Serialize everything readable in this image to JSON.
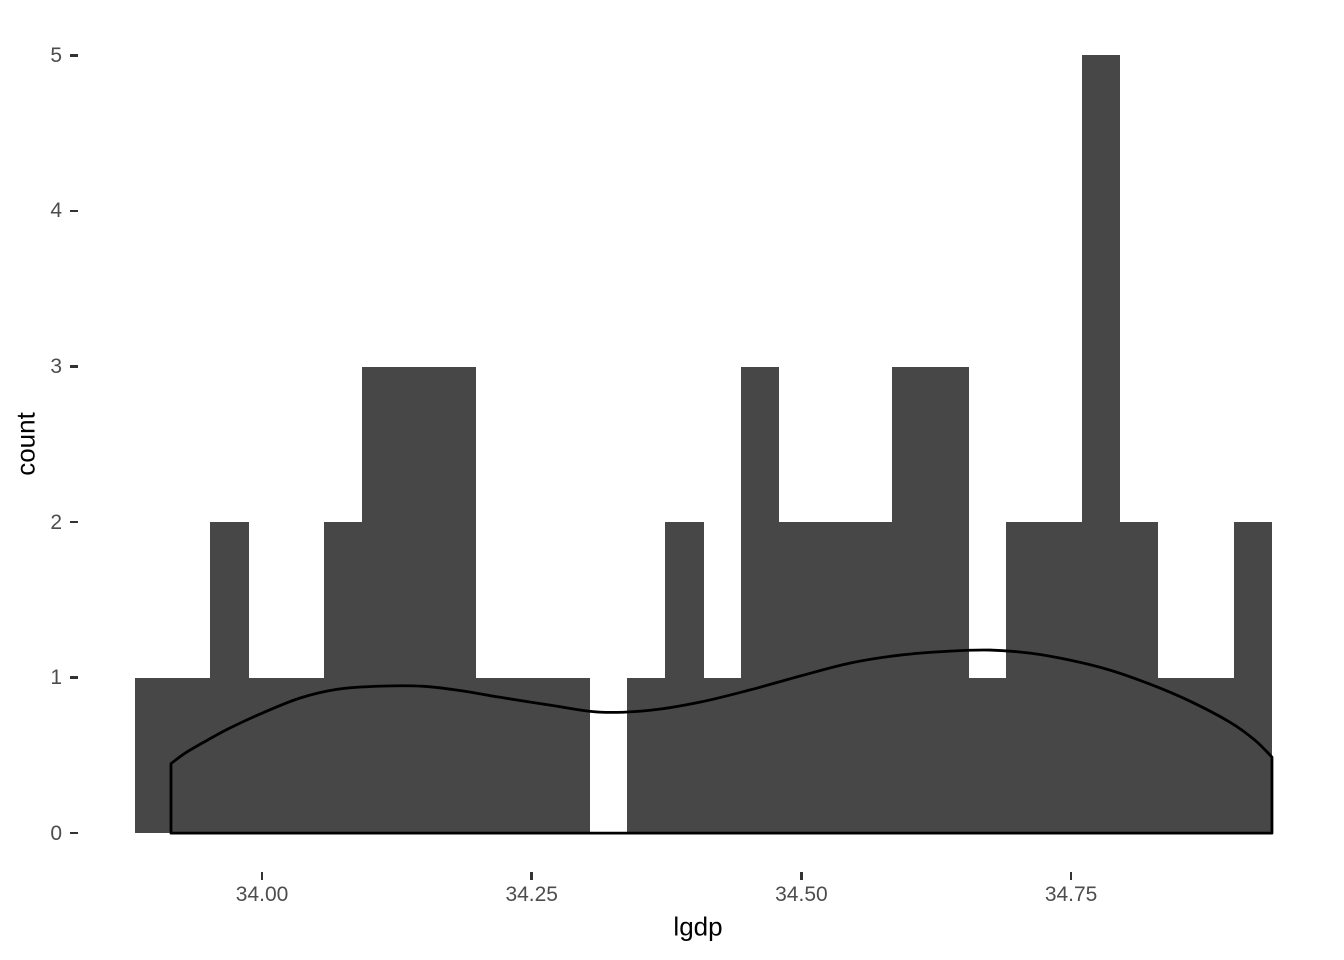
{
  "chart_data": {
    "type": "bar",
    "subtype": "histogram_with_density_overlay",
    "title": "",
    "xlabel": "lgdp",
    "ylabel": "count",
    "x_range": [
      33.8294,
      34.99
    ],
    "y_range": [
      -0.25,
      5.26
    ],
    "x_ticks": [
      34.0,
      34.25,
      34.5,
      34.75
    ],
    "x_tick_labels": [
      "34.00",
      "34.25",
      "34.50",
      "34.75"
    ],
    "x_minor_ticks": [
      33.875,
      34.125,
      34.375,
      34.625,
      34.875
    ],
    "y_ticks": [
      0,
      1,
      2,
      3,
      4,
      5
    ],
    "y_tick_labels": [
      "0",
      "1",
      "2",
      "3",
      "4",
      "5"
    ],
    "y_minor_ticks": [
      0.5,
      1.5,
      2.5,
      3.5,
      4.5
    ],
    "grid": "major+minor",
    "legend_position": "none",
    "histogram": {
      "bin_start": 33.8818,
      "bin_width": 0.03513,
      "counts": [
        1,
        1,
        2,
        1,
        1,
        2,
        3,
        3,
        3,
        1,
        1,
        1,
        0,
        1,
        2,
        1,
        3,
        2,
        2,
        2,
        3,
        3,
        1,
        2,
        2,
        5,
        2,
        1,
        1,
        2
      ]
    },
    "density_curve": [
      [
        33.9156,
        0.447
      ],
      [
        33.93,
        0.52
      ],
      [
        33.95,
        0.6
      ],
      [
        33.97,
        0.675
      ],
      [
        34.0,
        0.771
      ],
      [
        34.035,
        0.868
      ],
      [
        34.07,
        0.925
      ],
      [
        34.11,
        0.945
      ],
      [
        34.15,
        0.944
      ],
      [
        34.185,
        0.915
      ],
      [
        34.22,
        0.874
      ],
      [
        34.267,
        0.823
      ],
      [
        34.313,
        0.778
      ],
      [
        34.36,
        0.79
      ],
      [
        34.406,
        0.842
      ],
      [
        34.452,
        0.92
      ],
      [
        34.499,
        1.01
      ],
      [
        34.545,
        1.093
      ],
      [
        34.591,
        1.144
      ],
      [
        34.638,
        1.17
      ],
      [
        34.675,
        1.177
      ],
      [
        34.712,
        1.157
      ],
      [
        34.749,
        1.112
      ],
      [
        34.786,
        1.048
      ],
      [
        34.823,
        0.958
      ],
      [
        34.86,
        0.849
      ],
      [
        34.897,
        0.714
      ],
      [
        34.92,
        0.6
      ],
      [
        34.9362,
        0.489
      ]
    ]
  },
  "colors": {
    "outer_bg": "#ffffff",
    "panel_bg": "#ebebeb",
    "grid": "#ffffff",
    "bar_fill": "#474747",
    "density_line": "#000000",
    "tick_mark": "#333333",
    "tick_text": "#4d4d4d",
    "axis_title_text": "#000000"
  }
}
